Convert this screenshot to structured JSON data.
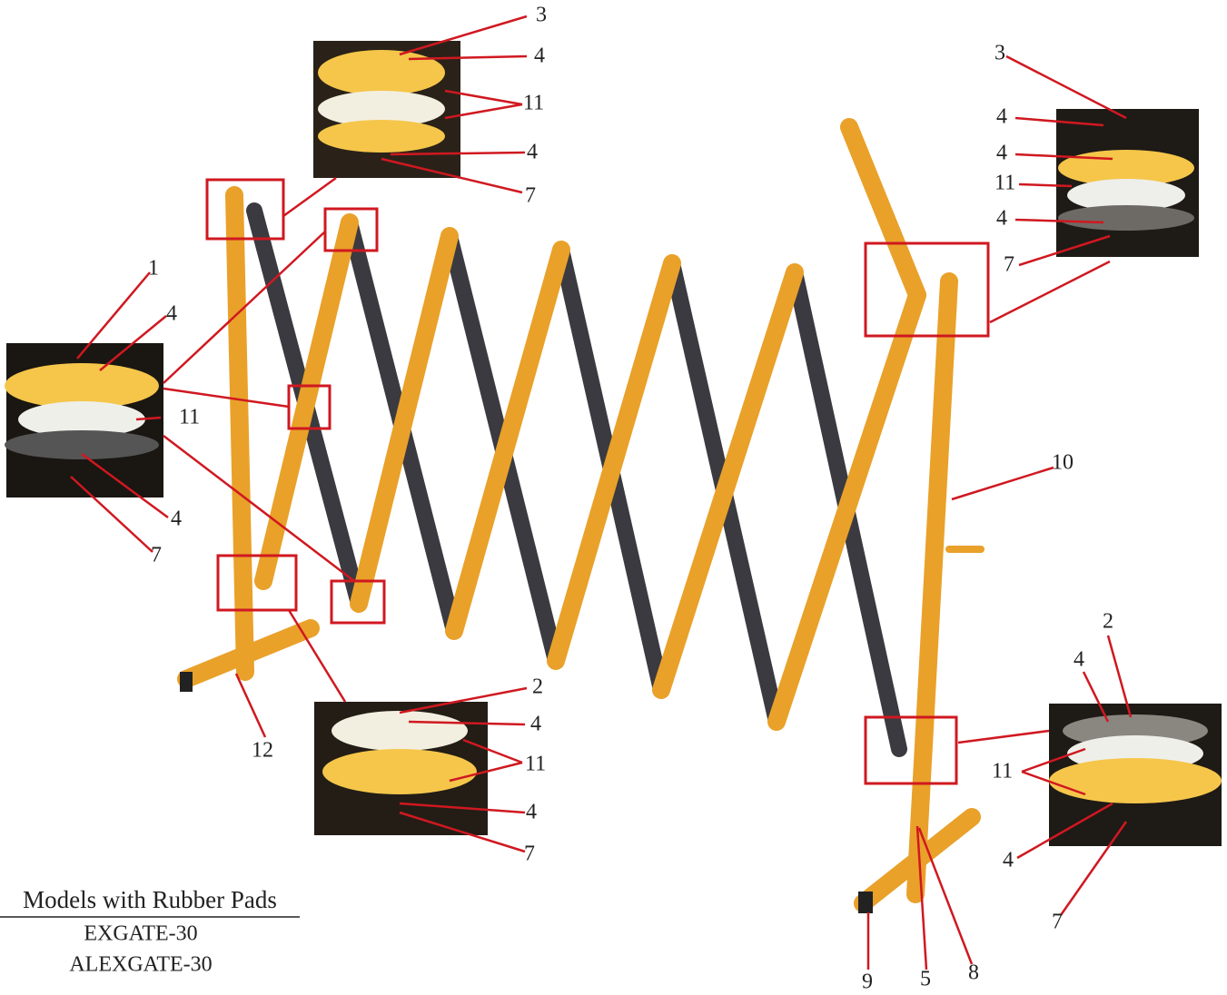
{
  "insets": [
    {
      "labels": [
        "3",
        "4",
        "11",
        "4",
        "7"
      ]
    },
    {
      "labels": [
        "3",
        "4",
        "4",
        "11",
        "4",
        "7"
      ]
    },
    {
      "labels": [
        "1",
        "4",
        "11",
        "4",
        "7"
      ]
    },
    {
      "labels": [
        "2",
        "4",
        "11",
        "4",
        "7"
      ]
    },
    {
      "labels": [
        "2",
        "4",
        "11",
        "4",
        "7"
      ]
    }
  ],
  "main_labels": [
    "10",
    "12",
    "9",
    "5",
    "8"
  ],
  "models": {
    "title": "Models with Rubber Pads",
    "items": [
      "EXGATE-30",
      "ALEXGATE-30"
    ]
  }
}
